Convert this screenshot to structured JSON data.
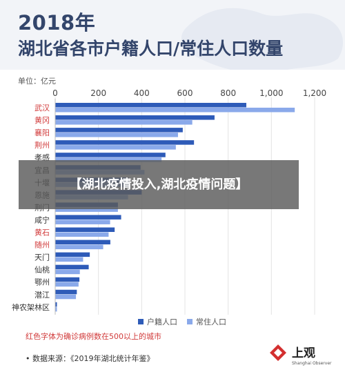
{
  "header": {
    "year": "2018年",
    "title": "湖北省各市户籍人口/常住人口数量"
  },
  "chart_data": {
    "type": "bar",
    "orientation": "horizontal",
    "unit_label": "单位：亿元",
    "categories": [
      "武汉",
      "黄冈",
      "襄阳",
      "荆州",
      "孝感",
      "宜昌",
      "十堰",
      "恩施",
      "荆门",
      "咸宁",
      "黄石",
      "随州",
      "天门",
      "仙桃",
      "鄂州",
      "潜江",
      "神农架林区"
    ],
    "highlight_categories": [
      "武汉",
      "黄冈",
      "襄阳",
      "荆州",
      "黄石",
      "随州"
    ],
    "series": [
      {
        "name": "户籍人口",
        "values": [
          884,
          737,
          590,
          642,
          510,
          395,
          340,
          400,
          290,
          305,
          275,
          255,
          160,
          155,
          112,
          100,
          8
        ],
        "color": "#2e5bb8"
      },
      {
        "name": "常住人口",
        "values": [
          1108,
          634,
          568,
          558,
          492,
          413,
          340,
          337,
          290,
          254,
          247,
          222,
          129,
          114,
          108,
          96,
          8
        ],
        "color": "#8aa9ea"
      }
    ],
    "xticks": [
      "0",
      "200",
      "400",
      "600",
      "800",
      "1,000",
      "1,200"
    ],
    "xlim": [
      0,
      1200
    ],
    "grid": true,
    "legend_position": "bottom"
  },
  "notes": {
    "red": "红色字体为确诊病例数在500以上的城市",
    "source": "•  数据来源：《2019年湖北统计年鉴》"
  },
  "logo": {
    "name": "上观",
    "sub": "Shanghai Observer"
  },
  "overlay": {
    "text": "【湖北疫情投入,湖北疫情问题】"
  },
  "colors": {
    "highlight_text": "#d13a3a",
    "normal_text": "#333333",
    "title": "#33456b"
  }
}
